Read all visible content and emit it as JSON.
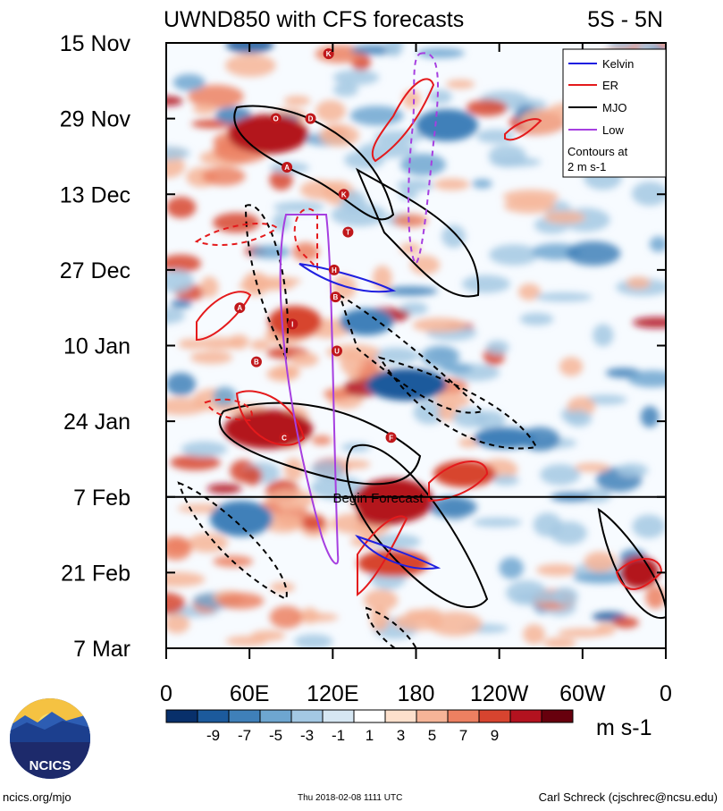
{
  "chart_data": {
    "type": "heatmap",
    "title": "UWND850 with CFS forecasts",
    "region": "5S - 5N",
    "y_ticks": [
      "15 Nov",
      "29 Nov",
      "13 Dec",
      "27 Dec",
      "10 Jan",
      "24 Jan",
      "7 Feb",
      "21 Feb",
      "7 Mar"
    ],
    "x_ticks": [
      "0",
      "60E",
      "120E",
      "180",
      "120W",
      "60W",
      "0"
    ],
    "x_range_deg_east": [
      0,
      360
    ],
    "y_range_days": [
      0,
      112
    ],
    "forecast_start_label": "Begin Forecast",
    "forecast_start_day": 84,
    "colorbar": {
      "labels": [
        "-9",
        "-7",
        "-5",
        "-3",
        "-1",
        "1",
        "3",
        "5",
        "7",
        "9"
      ],
      "levels": [
        -9,
        -7,
        -5,
        -3,
        -1,
        1,
        3,
        5,
        7,
        9
      ],
      "colors": [
        "#08306b",
        "#1c5a9c",
        "#3f80b9",
        "#6ea6d0",
        "#a3c8e3",
        "#d6e7f3",
        "#ffffff",
        "#fde0cc",
        "#f6b497",
        "#ec8061",
        "#d7442f",
        "#b3121f",
        "#67000d"
      ],
      "units": "m s-1"
    },
    "legend": {
      "entries": [
        {
          "name": "Kelvin",
          "color": "#1f1fe0"
        },
        {
          "name": "ER",
          "color": "#e41a1c"
        },
        {
          "name": "MJO",
          "color": "#000000"
        },
        {
          "name": "Low",
          "color": "#a63fe0"
        }
      ],
      "note_line1": "Contours at",
      "note_line2": "2 m s-1"
    },
    "storm_markers": [
      {
        "label": "K",
        "lon": 117,
        "day": 2
      },
      {
        "label": "O",
        "lon": 79,
        "day": 14
      },
      {
        "label": "D",
        "lon": 104,
        "day": 14
      },
      {
        "label": "A",
        "lon": 87,
        "day": 23
      },
      {
        "label": "K",
        "lon": 128,
        "day": 28
      },
      {
        "label": "T",
        "lon": 131,
        "day": 35
      },
      {
        "label": "H",
        "lon": 121,
        "day": 42
      },
      {
        "label": "B",
        "lon": 122,
        "day": 47
      },
      {
        "label": "A",
        "lon": 53,
        "day": 49
      },
      {
        "label": "I",
        "lon": 91,
        "day": 52
      },
      {
        "label": "U",
        "lon": 123,
        "day": 57
      },
      {
        "label": "B",
        "lon": 65,
        "day": 59
      },
      {
        "label": "C",
        "lon": 85,
        "day": 73
      },
      {
        "label": "F",
        "lon": 162,
        "day": 73
      }
    ]
  },
  "footer": {
    "left": "ncics.org/mjo",
    "center": "Thu 2018-02-08 1111 UTC",
    "right": "Carl Schreck (cjschrec@ncsu.edu)",
    "logo_text": "NCICS"
  }
}
